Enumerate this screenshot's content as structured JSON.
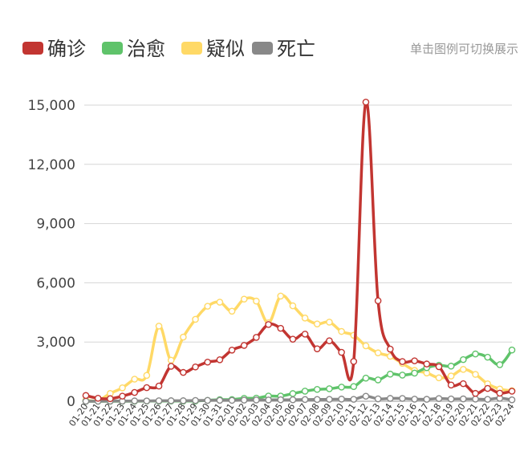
{
  "legend_hint": "单击图例可切换展示",
  "chart_data": {
    "type": "line",
    "categories": [
      "01-20",
      "01-21",
      "01-22",
      "01-23",
      "01-24",
      "01-25",
      "01-26",
      "01-27",
      "01-28",
      "01-29",
      "01-30",
      "01-31",
      "02-01",
      "02-02",
      "02-03",
      "02-04",
      "02-05",
      "02-06",
      "02-07",
      "02-08",
      "02-09",
      "02-10",
      "02-11",
      "02-12",
      "02-13",
      "02-14",
      "02-15",
      "02-16",
      "02-17",
      "02-18",
      "02-19",
      "02-20",
      "02-21",
      "02-22",
      "02-23",
      "02-24"
    ],
    "ylim": [
      0,
      15000
    ],
    "yticks": [
      0,
      3000,
      6000,
      9000,
      12000,
      15000
    ],
    "ytick_labels": [
      "0",
      "3,000",
      "6,000",
      "9,000",
      "12,000",
      "15,000"
    ],
    "legend_position": "top-left",
    "grid": true,
    "series": [
      {
        "name": "确诊",
        "color": "#c23531",
        "values": [
          291,
          149,
          131,
          259,
          444,
          688,
          769,
          1771,
          1459,
          1737,
          1982,
          2102,
          2590,
          2829,
          3235,
          3887,
          3694,
          3143,
          3399,
          2656,
          3062,
          2478,
          2015,
          15152,
          5090,
          2641,
          2009,
          2048,
          1886,
          1749,
          820,
          889,
          397,
          648,
          409,
          508
        ]
      },
      {
        "name": "治愈",
        "color": "#5fc36a",
        "values": [
          0,
          0,
          0,
          0,
          3,
          10,
          8,
          13,
          9,
          12,
          45,
          80,
          85,
          147,
          157,
          262,
          261,
          387,
          510,
          600,
          632,
          716,
          744,
          1171,
          1081,
          1373,
          1323,
          1425,
          1701,
          1824,
          1779,
          2109,
          2394,
          2231,
          1852,
          2596
        ]
      },
      {
        "name": "疑似",
        "color": "#ffd966",
        "values": [
          54,
          37,
          393,
          680,
          1118,
          1309,
          3806,
          2077,
          3248,
          4148,
          4812,
          5019,
          4562,
          5173,
          5072,
          3971,
          5328,
          4833,
          4214,
          3916,
          4008,
          3536,
          3342,
          2807,
          2450,
          2277,
          1918,
          1563,
          1432,
          1185,
          1277,
          1614,
          1361,
          882,
          620,
          530
        ]
      },
      {
        "name": "死亡",
        "color": "#888888",
        "values": [
          0,
          0,
          8,
          8,
          16,
          15,
          24,
          26,
          26,
          38,
          43,
          46,
          45,
          57,
          64,
          65,
          73,
          73,
          86,
          89,
          97,
          108,
          97,
          254,
          121,
          143,
          142,
          105,
          98,
          136,
          114,
          118,
          109,
          97,
          150,
          71
        ]
      }
    ]
  }
}
